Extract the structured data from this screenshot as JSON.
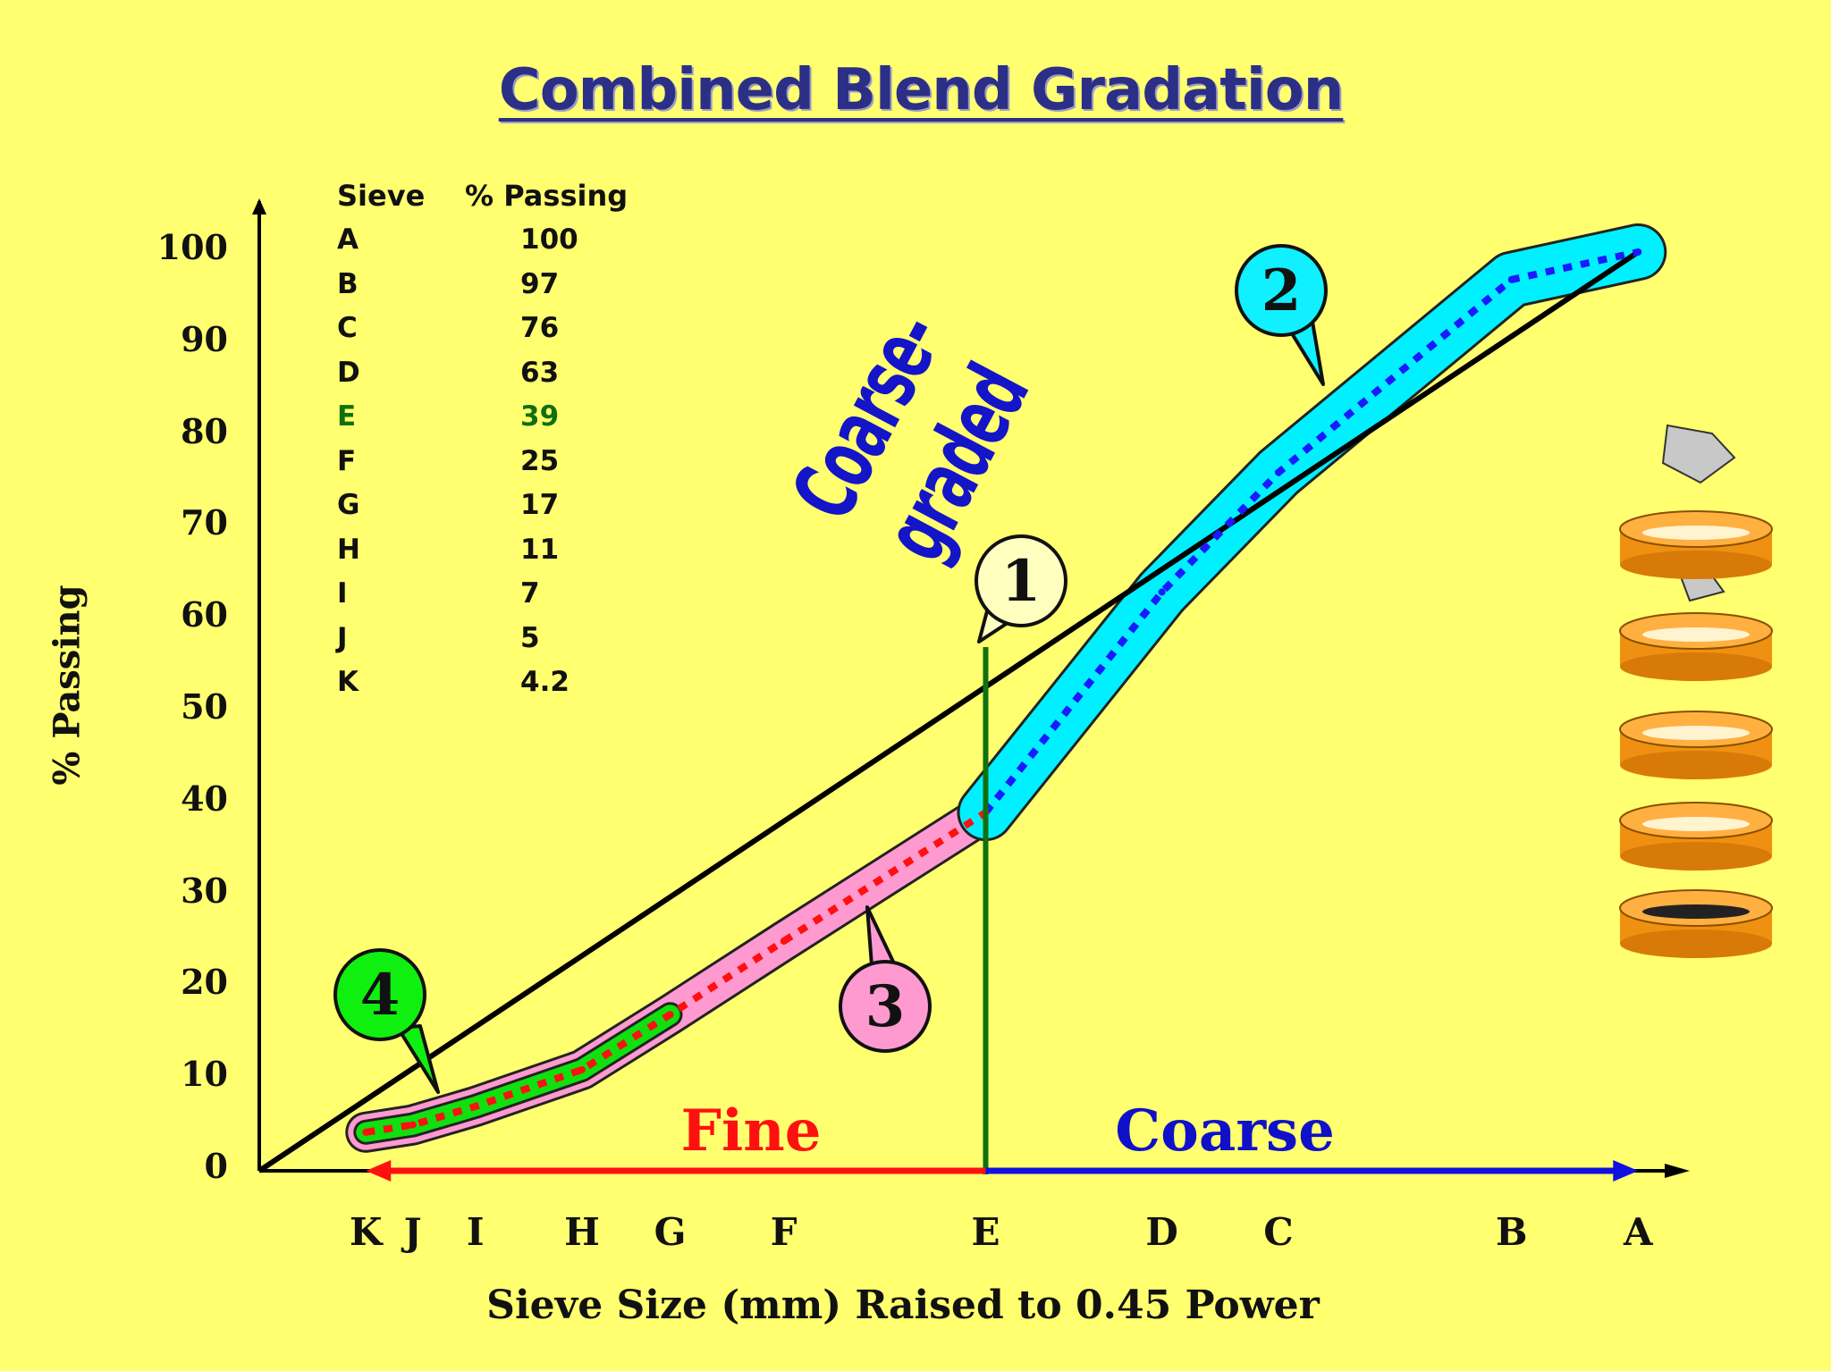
{
  "title": "Combined Blend Gradation",
  "annotation": "Coarse-graded",
  "zones": {
    "fine": "Fine",
    "coarse": "Coarse"
  },
  "callouts": [
    "1",
    "2",
    "3",
    "4"
  ],
  "colors": {
    "background": "#ffff70",
    "title": "#2b2f86",
    "max_density_line": "#000000",
    "gradation_line": "#1a1aff",
    "fine_gradation_line": "#ff1010",
    "coarse_band": "#00f0ff",
    "fine_band": "#ff9ad0",
    "finest_band": "#10e010",
    "divider": "#107010",
    "fine_arrow": "#ff1010",
    "coarse_arrow": "#1010e0",
    "sieve_pan": "#f09010"
  },
  "table": {
    "header_sieve": "Sieve",
    "header_passing": "% Passing",
    "rows": [
      {
        "sieve": "A",
        "passing": "100"
      },
      {
        "sieve": "B",
        "passing": "97"
      },
      {
        "sieve": "C",
        "passing": "76"
      },
      {
        "sieve": "D",
        "passing": "63"
      },
      {
        "sieve": "E",
        "passing": "39",
        "highlight": "#107010"
      },
      {
        "sieve": "F",
        "passing": "25"
      },
      {
        "sieve": "G",
        "passing": "17"
      },
      {
        "sieve": "H",
        "passing": "11"
      },
      {
        "sieve": "I",
        "passing": "7"
      },
      {
        "sieve": "J",
        "passing": "5"
      },
      {
        "sieve": "K",
        "passing": "4.2"
      }
    ]
  },
  "chart_data": {
    "type": "line",
    "title": "Combined Blend Gradation",
    "xlabel": "Sieve Size (mm) Raised to 0.45 Power",
    "ylabel": "% Passing",
    "ylim": [
      0,
      100
    ],
    "yticks": [
      0,
      10,
      20,
      30,
      40,
      50,
      60,
      70,
      80,
      90,
      100
    ],
    "categories": [
      "K",
      "J",
      "I",
      "H",
      "G",
      "F",
      "E",
      "D",
      "C",
      "B",
      "A"
    ],
    "category_positions": [
      0.075,
      0.108,
      0.152,
      0.227,
      0.289,
      0.369,
      0.511,
      0.635,
      0.717,
      0.881,
      0.97
    ],
    "series": [
      {
        "values": [
          4.2,
          5,
          7,
          11,
          17,
          25,
          39,
          63,
          76,
          97,
          100
        ]
      }
    ],
    "max_density_line": {
      "from": [
        0,
        0
      ],
      "to": [
        0.97,
        100
      ]
    },
    "divider_at": "E",
    "grid": false
  }
}
